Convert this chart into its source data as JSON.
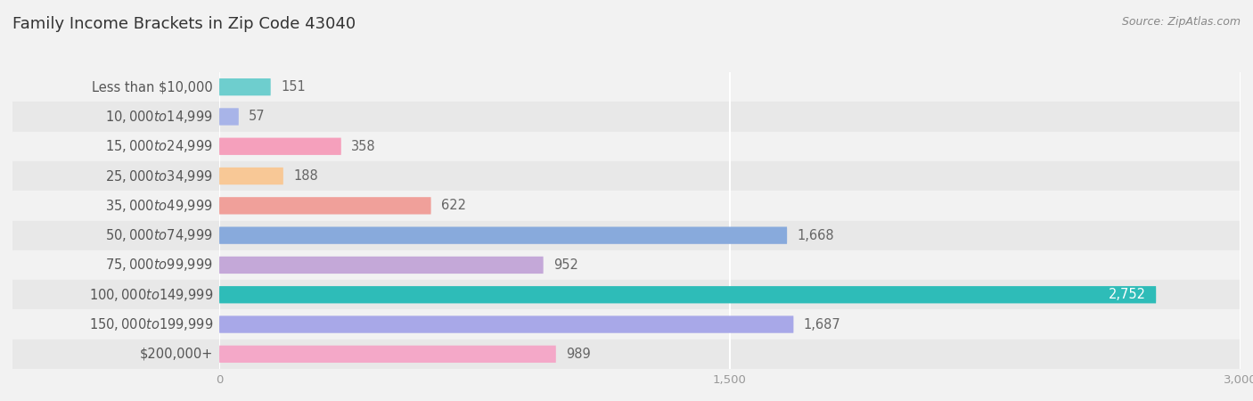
{
  "title": "Family Income Brackets in Zip Code 43040",
  "source": "Source: ZipAtlas.com",
  "categories": [
    "Less than $10,000",
    "$10,000 to $14,999",
    "$15,000 to $24,999",
    "$25,000 to $34,999",
    "$35,000 to $49,999",
    "$50,000 to $74,999",
    "$75,000 to $99,999",
    "$100,000 to $149,999",
    "$150,000 to $199,999",
    "$200,000+"
  ],
  "values": [
    151,
    57,
    358,
    188,
    622,
    1668,
    952,
    2752,
    1687,
    989
  ],
  "bar_colors": [
    "#6ECECE",
    "#A8B4E8",
    "#F5A0BC",
    "#F8C896",
    "#F0A09A",
    "#88AADC",
    "#C4A8D8",
    "#2EBCB8",
    "#A8A8E8",
    "#F4A8C8"
  ],
  "row_bg_even": "#F2F2F2",
  "row_bg_odd": "#E8E8E8",
  "background_color": "#F2F2F2",
  "xlim": [
    0,
    3000
  ],
  "xticks": [
    0,
    1500,
    3000
  ],
  "title_fontsize": 13,
  "label_fontsize": 10.5,
  "value_fontsize": 10.5,
  "source_fontsize": 9
}
